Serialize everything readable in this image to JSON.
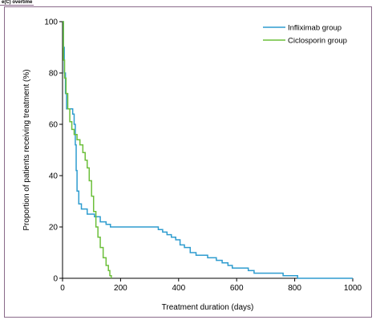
{
  "panel_label": "e(C) overtime",
  "chart_data": {
    "type": "line",
    "step": true,
    "title": "",
    "xlabel": "Treatment duration (days)",
    "ylabel": "Proportion of patients receiving treatment (%)",
    "xlim": [
      0,
      1000
    ],
    "ylim": [
      0,
      100
    ],
    "x_ticks": [
      0,
      200,
      400,
      600,
      800,
      1000
    ],
    "y_ticks": [
      0,
      20,
      40,
      60,
      80,
      100
    ],
    "grid": false,
    "legend_position": "top-right",
    "series": [
      {
        "name": "Infliximab group",
        "color": "#2e9ccf",
        "points": [
          [
            0,
            100
          ],
          [
            3,
            90
          ],
          [
            6,
            80
          ],
          [
            10,
            72
          ],
          [
            14,
            66
          ],
          [
            30,
            66
          ],
          [
            35,
            64
          ],
          [
            40,
            60
          ],
          [
            44,
            52
          ],
          [
            47,
            42
          ],
          [
            50,
            34
          ],
          [
            56,
            29
          ],
          [
            65,
            27
          ],
          [
            85,
            25
          ],
          [
            110,
            24
          ],
          [
            130,
            22
          ],
          [
            150,
            21
          ],
          [
            165,
            20
          ],
          [
            310,
            20
          ],
          [
            330,
            19
          ],
          [
            345,
            18
          ],
          [
            360,
            17
          ],
          [
            375,
            16
          ],
          [
            390,
            15
          ],
          [
            405,
            13
          ],
          [
            420,
            12
          ],
          [
            440,
            10
          ],
          [
            460,
            9
          ],
          [
            500,
            8
          ],
          [
            530,
            7
          ],
          [
            550,
            6
          ],
          [
            570,
            5
          ],
          [
            585,
            4
          ],
          [
            600,
            4
          ],
          [
            640,
            3
          ],
          [
            660,
            2
          ],
          [
            700,
            2
          ],
          [
            760,
            1
          ],
          [
            810,
            0
          ],
          [
            1000,
            0
          ]
        ]
      },
      {
        "name": "Ciclosporin group",
        "color": "#6cbf3a",
        "points": [
          [
            0,
            100
          ],
          [
            3,
            85
          ],
          [
            7,
            78
          ],
          [
            12,
            72
          ],
          [
            18,
            66
          ],
          [
            25,
            61
          ],
          [
            32,
            58
          ],
          [
            40,
            56
          ],
          [
            50,
            54
          ],
          [
            60,
            52
          ],
          [
            70,
            49
          ],
          [
            78,
            46
          ],
          [
            85,
            43
          ],
          [
            92,
            38
          ],
          [
            100,
            32
          ],
          [
            107,
            26
          ],
          [
            115,
            20
          ],
          [
            122,
            16
          ],
          [
            130,
            12
          ],
          [
            140,
            8
          ],
          [
            150,
            5
          ],
          [
            158,
            3
          ],
          [
            163,
            1
          ],
          [
            168,
            0
          ]
        ]
      }
    ]
  }
}
